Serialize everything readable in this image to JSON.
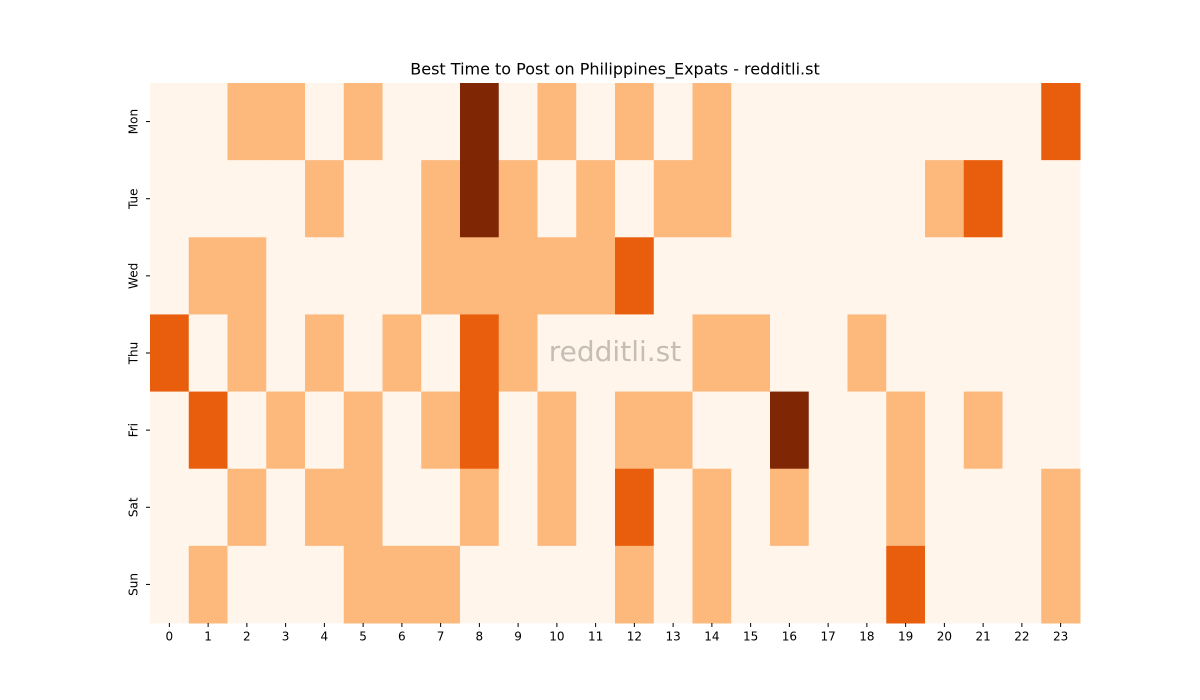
{
  "chart_data": {
    "type": "heatmap",
    "title": "Best Time to Post on Philippines_Expats - redditli.st",
    "watermark": "redditli.st",
    "x": [
      0,
      1,
      2,
      3,
      4,
      5,
      6,
      7,
      8,
      9,
      10,
      11,
      12,
      13,
      14,
      15,
      16,
      17,
      18,
      19,
      20,
      21,
      22,
      23
    ],
    "y": [
      "Mon",
      "Tue",
      "Wed",
      "Thu",
      "Fri",
      "Sat",
      "Sun"
    ],
    "colors": [
      "#fff5eb",
      "#fdb87c",
      "#e95e0d",
      "#7f2704"
    ],
    "values": [
      [
        0,
        0,
        1,
        1,
        0,
        1,
        0,
        0,
        3,
        0,
        1,
        0,
        1,
        0,
        1,
        0,
        0,
        0,
        0,
        0,
        0,
        0,
        0,
        2
      ],
      [
        0,
        0,
        0,
        0,
        1,
        0,
        0,
        1,
        3,
        1,
        0,
        1,
        0,
        1,
        1,
        0,
        0,
        0,
        0,
        0,
        1,
        2,
        0,
        0
      ],
      [
        0,
        1,
        1,
        0,
        0,
        0,
        0,
        1,
        1,
        1,
        1,
        1,
        2,
        0,
        0,
        0,
        0,
        0,
        0,
        0,
        0,
        0,
        0,
        0
      ],
      [
        2,
        0,
        1,
        0,
        1,
        0,
        1,
        0,
        2,
        1,
        0,
        0,
        0,
        0,
        1,
        1,
        0,
        0,
        1,
        0,
        0,
        0,
        0,
        0
      ],
      [
        0,
        2,
        0,
        1,
        0,
        1,
        0,
        1,
        2,
        0,
        1,
        0,
        1,
        1,
        0,
        0,
        3,
        0,
        0,
        1,
        0,
        1,
        0,
        0
      ],
      [
        0,
        0,
        1,
        0,
        1,
        1,
        0,
        0,
        1,
        0,
        1,
        0,
        2,
        0,
        1,
        0,
        1,
        0,
        0,
        1,
        0,
        0,
        0,
        1
      ],
      [
        0,
        1,
        0,
        0,
        0,
        1,
        1,
        1,
        0,
        0,
        0,
        0,
        1,
        0,
        1,
        0,
        0,
        0,
        0,
        2,
        0,
        0,
        0,
        1
      ]
    ]
  }
}
